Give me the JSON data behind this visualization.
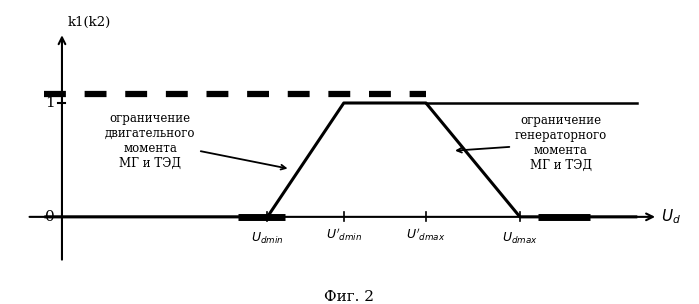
{
  "title": "",
  "xlabel": "$U_d$",
  "ylabel": "k1(k2)",
  "figcaption": "Фиг. 2",
  "xlim": [
    -0.8,
    10.5
  ],
  "ylim": [
    -0.5,
    1.75
  ],
  "y_tick_val": 1.0,
  "y_dashed_level": 1.08,
  "annotation_left": "ограничение\nдвигательного\nмомента\nМГ и ТЭД",
  "annotation_right": "ограничение\nгенераторного\nмомента\nМГ и ТЭД",
  "Udmin": 3.5,
  "Udmin_prime": 4.8,
  "Udmax_prime": 6.2,
  "Udmax": 7.8,
  "x_axis_end": 9.8,
  "background_color": "#ffffff",
  "line_color": "#000000"
}
